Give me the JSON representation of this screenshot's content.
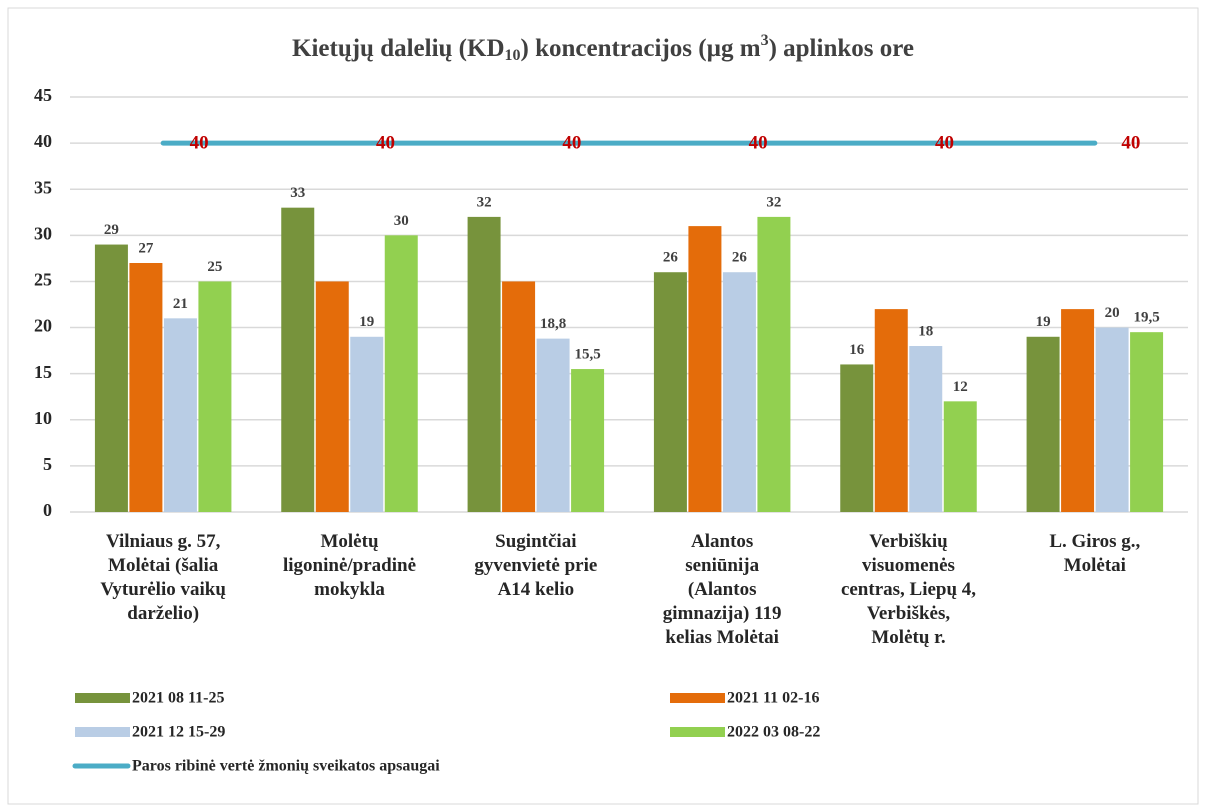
{
  "chart_data": {
    "type": "bar",
    "title": [
      "Kietųjų dalelių (KD",
      "10",
      ") koncentracijos (µg m",
      "3",
      ") aplinkos ore"
    ],
    "categories": [
      "Vilniaus g. 57,\nMolėtai (šalia\nVyturėlio vaikų\ndarželio)",
      "Molėtų\nligoninė/pradinė\nmokykla",
      "Sugintčiai\ngyvenvietė prie\nA14 kelio",
      "Alantos\nseniūnija\n(Alantos\ngimnazija) 119\nkelias Molėtai",
      "Verbiškių\nvisuomenės\ncentras, Liepų 4,\nVerbiškės,\nMolėtų r.",
      "L. Giros g.,\nMolėtai"
    ],
    "series": [
      {
        "name": "2021 08 11-25",
        "color": "#77933c",
        "values": [
          29,
          33,
          32,
          26,
          16,
          19
        ],
        "value_labels": [
          "29",
          "33",
          "32",
          "26",
          "16",
          "19"
        ]
      },
      {
        "name": "2021 11 02-16",
        "color": "#e46c0a",
        "values": [
          27,
          25,
          25,
          31,
          22,
          22
        ],
        "value_labels": [
          "27",
          null,
          null,
          null,
          null,
          null
        ]
      },
      {
        "name": "2021 12 15-29",
        "color": "#b9cde5",
        "values": [
          21,
          19,
          18.8,
          26,
          18,
          20
        ],
        "value_labels": [
          "21",
          "19",
          "18,8",
          "26",
          "18",
          "20"
        ]
      },
      {
        "name": "2022 03 08-22",
        "color": "#92d050",
        "values": [
          25,
          30,
          15.5,
          32,
          12,
          19.5
        ],
        "value_labels": [
          "25",
          "30",
          "15,5",
          "32",
          "12",
          "19,5"
        ]
      },
      {
        "name": "Paros ribinė vertė  žmonių sveikatos apsaugai",
        "type": "line",
        "color": "#4bacc6",
        "label_color": "#c00000",
        "values": [
          40,
          40,
          40,
          40,
          40,
          40
        ],
        "value_labels": [
          "40",
          "40",
          "40",
          "40",
          "40",
          "40"
        ]
      }
    ],
    "ylim": [
      0,
      45
    ],
    "yticks": [
      0,
      5,
      10,
      15,
      20,
      25,
      30,
      35,
      40,
      45
    ],
    "grid": true,
    "legend": "bottom"
  }
}
